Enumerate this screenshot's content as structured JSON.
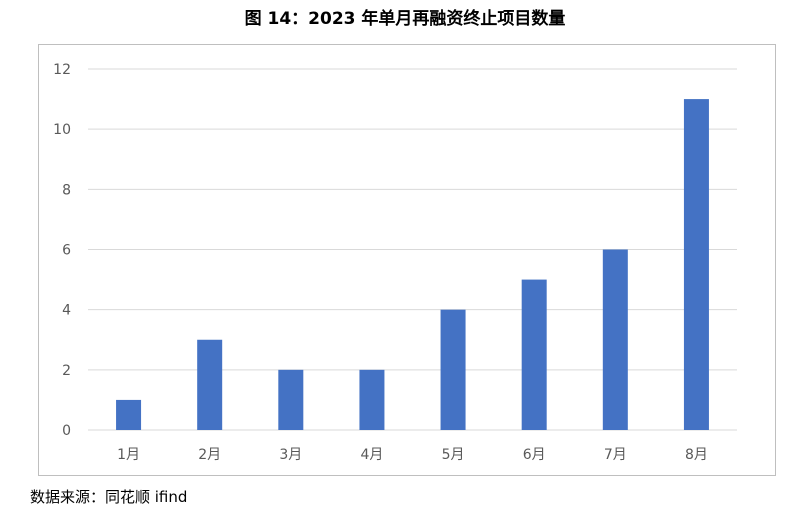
{
  "title": "图 14：2023 年单月再融资终止项目数量",
  "source": "数据来源：同花顺 ifind",
  "chart_data": {
    "type": "bar",
    "categories": [
      "1月",
      "2月",
      "3月",
      "4月",
      "5月",
      "6月",
      "7月",
      "8月"
    ],
    "values": [
      1,
      3,
      2,
      2,
      4,
      5,
      6,
      11
    ],
    "ylim": [
      0,
      12
    ],
    "yticks": [
      0,
      2,
      4,
      6,
      8,
      10,
      12
    ],
    "bar_color": "#4472c4",
    "grid": true,
    "legend": "none"
  }
}
